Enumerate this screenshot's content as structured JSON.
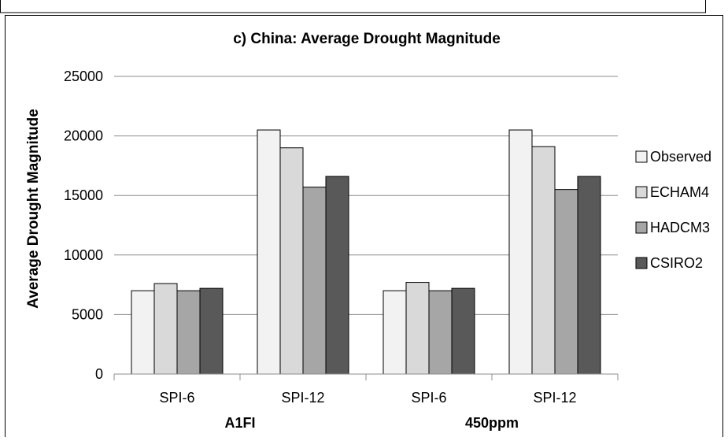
{
  "chart_data": {
    "type": "bar",
    "title": "c) China: Average Drought Magnitude",
    "xlabel": "",
    "ylabel": "Average Drought Magnitude",
    "ylim": [
      0,
      25000
    ],
    "yticks": [
      0,
      5000,
      10000,
      15000,
      20000,
      25000
    ],
    "grid": true,
    "legend_position": "right",
    "categories": [
      "SPI-6",
      "SPI-12",
      "SPI-6",
      "SPI-12"
    ],
    "groups": [
      {
        "label": "A1FI",
        "categories": [
          "SPI-6",
          "SPI-12"
        ]
      },
      {
        "label": "450ppm",
        "categories": [
          "SPI-6",
          "SPI-12"
        ]
      }
    ],
    "series": [
      {
        "name": "Observed",
        "color": "#f2f2f2",
        "values": [
          7000,
          20500,
          7000,
          20500
        ]
      },
      {
        "name": "ECHAM4",
        "color": "#d9d9d9",
        "values": [
          7600,
          19000,
          7700,
          19100
        ]
      },
      {
        "name": "HADCM3",
        "color": "#a6a6a6",
        "values": [
          7000,
          15700,
          7000,
          15500
        ]
      },
      {
        "name": "CSIRO2",
        "color": "#595959",
        "values": [
          7200,
          16600,
          7200,
          16600
        ]
      }
    ]
  }
}
